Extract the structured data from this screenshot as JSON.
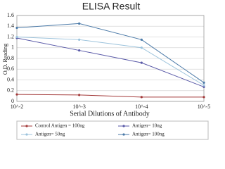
{
  "chart_data": {
    "type": "line",
    "title": "ELISA Result",
    "x_label": "Serial Dilutions  of Antibody",
    "y_label": "O.D. Reading",
    "categories": [
      "10^-2",
      "10^-3",
      "10^-4",
      "10^-5"
    ],
    "series": [
      {
        "name": "Control Antigen = 100ng",
        "color": "#a33a3a",
        "values": [
          0.13,
          0.12,
          0.08,
          0.08
        ]
      },
      {
        "name": "Antigen= 10ng",
        "color": "#5a5aa8",
        "values": [
          1.18,
          0.95,
          0.72,
          0.27
        ]
      },
      {
        "name": "Antigen= 50ng",
        "color": "#9cc3dc",
        "values": [
          1.2,
          1.15,
          1.0,
          0.3
        ]
      },
      {
        "name": "Antigen= 100ng",
        "color": "#4b7aa8",
        "values": [
          1.37,
          1.45,
          1.15,
          0.35
        ]
      }
    ],
    "ylim": [
      0,
      1.6
    ],
    "yticks": [
      0,
      0.2,
      0.4,
      0.6,
      0.8,
      1,
      1.2,
      1.4,
      1.6
    ],
    "grid": true
  }
}
